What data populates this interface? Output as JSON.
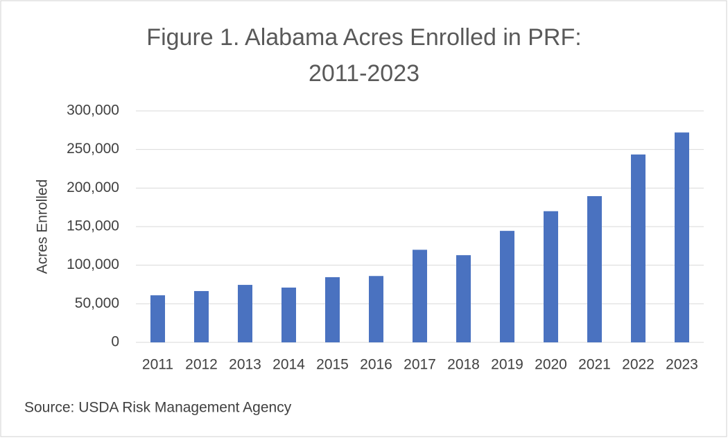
{
  "chart_data": {
    "type": "bar",
    "title": "Figure 1. Alabama Acres Enrolled in PRF: 2011-2023",
    "y_axis_label": "Acres Enrolled",
    "source": "Source: USDA Risk Management Agency",
    "categories": [
      "2011",
      "2012",
      "2013",
      "2014",
      "2015",
      "2016",
      "2017",
      "2018",
      "2019",
      "2020",
      "2021",
      "2022",
      "2023"
    ],
    "values": [
      61000,
      66500,
      74500,
      71000,
      84500,
      86000,
      120000,
      113000,
      144500,
      170000,
      189500,
      243500,
      272000
    ],
    "color": "#4a72c0",
    "ylim": [
      0,
      300000
    ],
    "yticks": [
      0,
      {
        "value": 50000,
        "label": "50,000"
      },
      {
        "value": 100000,
        "label": "100,000"
      },
      {
        "value": 150000,
        "label": "150,000"
      },
      {
        "value": 200000,
        "label": "200,000"
      },
      {
        "value": 250000,
        "label": "250,000"
      },
      {
        "value": 300000,
        "label": "300,000"
      }
    ],
    "grid": true
  }
}
